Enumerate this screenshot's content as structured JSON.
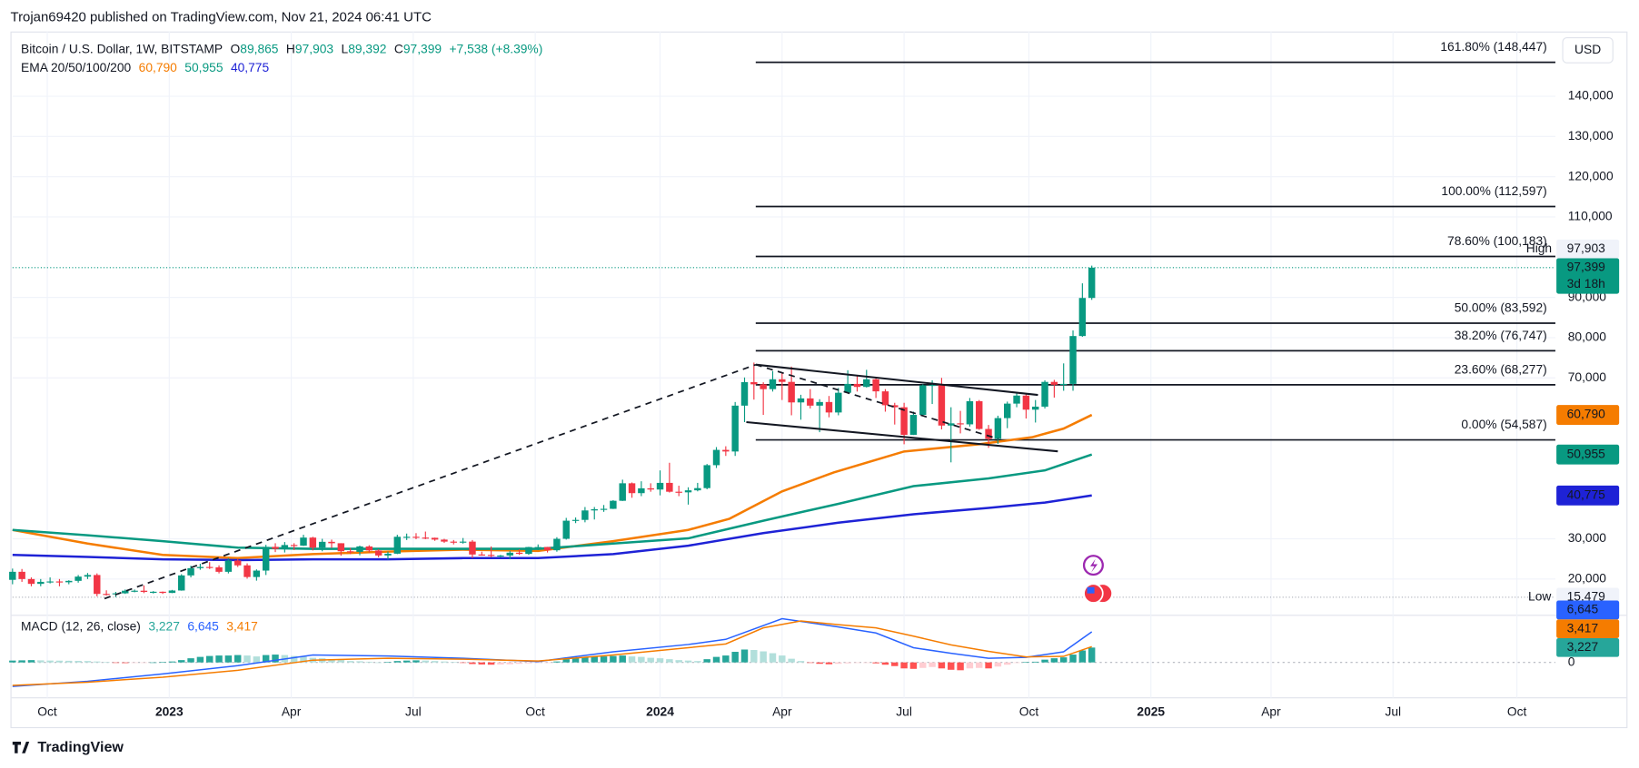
{
  "header": {
    "publisher": "Trojan69420 published on TradingView.com, Nov 21, 2024 06:41 UTC"
  },
  "footer": {
    "brand": "TradingView"
  },
  "chart_data": [
    {
      "type": "candlestick",
      "title": "Bitcoin / U.S. Dollar, 1W, BITSTAMP",
      "currency": "USD",
      "ohlc": [
        {
          "key": "O",
          "value": 89865,
          "label": "89,865"
        },
        {
          "key": "H",
          "value": 97903,
          "label": "97,903"
        },
        {
          "key": "L",
          "value": 89392,
          "label": "89,392"
        },
        {
          "key": "C",
          "value": 97399,
          "label": "97,399"
        }
      ],
      "change": "+7,538 (+8.39%)",
      "countdown": "3d 18h",
      "high_tag": "High",
      "low_marker": {
        "label": "Low",
        "price": {
          "value": 15479,
          "label": "15,479"
        }
      },
      "up_color": "#089981",
      "down_color": "#f23645",
      "grid": true,
      "xlim": [
        0,
        164.4
      ],
      "xticks": [
        {
          "value": 3.7,
          "label": "Oct"
        },
        {
          "value": 16.7,
          "label": "2023"
        },
        {
          "value": 29.7,
          "label": "Apr"
        },
        {
          "value": 42.7,
          "label": "Jul"
        },
        {
          "value": 55.7,
          "label": "Oct"
        },
        {
          "value": 69,
          "label": "2024"
        },
        {
          "value": 82,
          "label": "Apr"
        },
        {
          "value": 95,
          "label": "Jul"
        },
        {
          "value": 108.3,
          "label": "Oct"
        },
        {
          "value": 121.3,
          "label": "2025"
        },
        {
          "value": 134.1,
          "label": "Apr"
        },
        {
          "value": 147.1,
          "label": "Jul"
        },
        {
          "value": 160.3,
          "label": "Oct"
        }
      ],
      "ylim": [
        11235,
        156095
      ],
      "yticks": [
        {
          "value": 140000,
          "label": "140,000"
        },
        {
          "value": 130000,
          "label": "130,000"
        },
        {
          "value": 120000,
          "label": "120,000"
        },
        {
          "value": 110000,
          "label": "110,000"
        },
        {
          "value": 90000,
          "label": "90,000"
        },
        {
          "value": 80000,
          "label": "80,000"
        },
        {
          "value": 70000,
          "label": "70,000"
        },
        {
          "value": 30000,
          "label": "30,000"
        },
        {
          "value": 20000,
          "label": "20,000"
        }
      ],
      "open": [
        19800,
        21800,
        20000,
        18800,
        19300,
        19400,
        19200,
        19550,
        20600,
        21000,
        16300,
        16280,
        16450,
        17100,
        17100,
        16800,
        16840,
        16550,
        17150,
        20900,
        22700,
        23000,
        22900,
        21800,
        24600,
        23400,
        20500,
        22100,
        28000,
        27500,
        28450,
        28300,
        30300,
        27800,
        29250,
        28900,
        26900,
        26750,
        28100,
        27100,
        25850,
        26300,
        30500,
        30500,
        30300,
        30250,
        29800,
        29300,
        29050,
        29300,
        26100,
        26000,
        25850,
        25850,
        26550,
        26250,
        27950,
        27950,
        27150,
        30000,
        34500,
        34700,
        37050,
        37350,
        37450,
        39450,
        43800,
        41350,
        42550,
        42250,
        43900,
        41700,
        41550,
        42050,
        42600,
        48300,
        52100,
        51700,
        63100,
        68950,
        68400,
        67200,
        69650,
        69000,
        63900,
        64900,
        63100,
        64000,
        61400,
        66300,
        68500,
        67750,
        69650,
        66650,
        63200,
        62700,
        55850,
        60800,
        68150,
        68250,
        58150,
        58700,
        58450,
        64200,
        57300,
        54850,
        60000,
        63600,
        65600,
        62100,
        62850,
        69000,
        68300,
        68500,
        80400,
        89865
      ],
      "high": [
        22600,
        22500,
        20400,
        20000,
        20400,
        20000,
        19700,
        21000,
        21500,
        21400,
        17200,
        16800,
        17400,
        17400,
        18400,
        17000,
        16900,
        17300,
        21200,
        23300,
        23800,
        24200,
        23400,
        25200,
        25000,
        23900,
        22400,
        28500,
        28900,
        29200,
        28900,
        31000,
        30500,
        30000,
        29800,
        28900,
        27700,
        28300,
        28400,
        27400,
        26800,
        31000,
        31300,
        31400,
        31800,
        30300,
        30000,
        29700,
        30200,
        29700,
        26800,
        28100,
        26000,
        27000,
        27400,
        28000,
        28600,
        28000,
        30400,
        35200,
        35300,
        37900,
        37900,
        38400,
        39600,
        44700,
        44000,
        44300,
        43800,
        47000,
        48900,
        43200,
        42800,
        43900,
        48600,
        52800,
        53000,
        64000,
        70100,
        73800,
        68900,
        71700,
        71300,
        72800,
        65800,
        67200,
        64700,
        65500,
        67500,
        71900,
        70500,
        72000,
        70000,
        67200,
        63800,
        63800,
        61600,
        68400,
        69400,
        70000,
        62700,
        61800,
        65000,
        64500,
        58300,
        60600,
        64100,
        66500,
        66000,
        64500,
        69400,
        69500,
        73600,
        81800,
        93500,
        97903
      ],
      "low": [
        18700,
        19300,
        18200,
        18200,
        18900,
        18200,
        18700,
        19100,
        20000,
        15700,
        15900,
        15479,
        16300,
        16700,
        16500,
        16400,
        16300,
        16500,
        17100,
        20400,
        22300,
        22500,
        21400,
        21400,
        23000,
        20100,
        19600,
        21000,
        26700,
        26600,
        27200,
        28200,
        27100,
        26900,
        27700,
        25800,
        26200,
        25900,
        26600,
        25400,
        24800,
        26200,
        29700,
        29900,
        29900,
        29500,
        29000,
        28600,
        28800,
        25200,
        25800,
        25400,
        25400,
        24900,
        26000,
        26000,
        27200,
        26600,
        26800,
        29800,
        33900,
        34100,
        34800,
        36700,
        37400,
        39400,
        40200,
        40600,
        41700,
        40800,
        41500,
        40600,
        38500,
        41800,
        42300,
        47600,
        50600,
        50600,
        59000,
        64600,
        60800,
        66600,
        64500,
        60700,
        59600,
        62400,
        56500,
        60200,
        60700,
        66100,
        66600,
        67600,
        65000,
        61600,
        58400,
        53500,
        55800,
        60700,
        63500,
        57200,
        49000,
        56200,
        57900,
        57100,
        52600,
        53600,
        57500,
        62700,
        59900,
        58900,
        62400,
        65100,
        66800,
        66800,
        80200,
        89392
      ],
      "close": [
        21800,
        20000,
        18800,
        19300,
        19400,
        19200,
        19550,
        20600,
        21000,
        16300,
        16280,
        16450,
        17100,
        17100,
        16800,
        16840,
        16550,
        17150,
        20900,
        22700,
        23000,
        22900,
        21800,
        24600,
        23400,
        20500,
        22100,
        28000,
        27500,
        28450,
        28300,
        30300,
        27800,
        29250,
        28900,
        26900,
        26750,
        28100,
        27100,
        25850,
        26300,
        30500,
        30500,
        30300,
        30250,
        29800,
        29300,
        29050,
        29300,
        26100,
        26000,
        25850,
        25850,
        26550,
        26250,
        27950,
        27950,
        27150,
        30000,
        34500,
        34700,
        37050,
        37350,
        37450,
        39450,
        43800,
        41350,
        42550,
        42250,
        43900,
        41700,
        41550,
        42050,
        42600,
        48300,
        52100,
        51700,
        63100,
        68950,
        68400,
        67200,
        69650,
        69000,
        63900,
        64900,
        63100,
        64000,
        61400,
        66300,
        68500,
        67750,
        69650,
        66650,
        63200,
        62700,
        55850,
        60800,
        68150,
        68250,
        58150,
        58700,
        58450,
        64200,
        57300,
        54850,
        60000,
        63600,
        65600,
        62100,
        62850,
        69000,
        68300,
        68500,
        80400,
        89861,
        97399
      ],
      "indicator": {
        "label": "EMA 20/50/100/200",
        "series": [
          {
            "color": "#f57c00",
            "x": [
              0,
              8,
              16,
              24,
              32,
              40,
              48,
              56,
              64,
              72,
              76.4,
              82,
              87.5,
              95,
              103,
              108.7,
              112,
              115
            ],
            "values": [
              32200,
              28800,
              26000,
              25200,
              26200,
              26800,
              27300,
              27000,
              29400,
              32200,
              35000,
              41800,
              46500,
              51700,
              53500,
              55300,
              57400,
              60790
            ],
            "last_label": "60,790"
          },
          {
            "color": "#089981",
            "x": [
              0,
              8,
              16,
              24,
              32,
              40,
              48,
              56,
              64,
              72,
              80,
              88,
              96,
              104,
              110,
              115
            ],
            "values": [
              32200,
              30900,
              29400,
              27800,
              27500,
              27500,
              27500,
              27500,
              28800,
              30100,
              34500,
              38700,
              43100,
              45000,
              47000,
              50955
            ],
            "last_label": "50,955"
          },
          {
            "color": "#1e22d6",
            "x": [
              0,
              8,
              16,
              24,
              32,
              40,
              48,
              56,
              64,
              72,
              80,
              88,
              96,
              104,
              110,
              115
            ],
            "values": [
              26000,
              25500,
              24900,
              24700,
              24900,
              24900,
              25200,
              25200,
              26200,
              28300,
              31400,
              34000,
              36100,
              37700,
              39000,
              40775
            ],
            "last_label": "40,775"
          }
        ]
      },
      "fib_levels": [
        {
          "value": 148447,
          "label": "161.80% (148,447)"
        },
        {
          "value": 112597,
          "label": "100.00% (112,597)"
        },
        {
          "value": 100183,
          "label": "78.60% (100,183)"
        },
        {
          "value": 83592,
          "label": "50.00% (83,592)"
        },
        {
          "value": 76747,
          "label": "38.20% (76,747)"
        },
        {
          "value": 68277,
          "label": "23.60% (68,277)"
        },
        {
          "value": 54587,
          "label": "0.00% (54,587)"
        }
      ]
    },
    {
      "type": "macd",
      "title": "MACD (12, 26, close)",
      "ylim": [
        -7700,
        10000
      ],
      "yticks": [
        0
      ],
      "histogram": {
        "colors": [
          "#26a69a",
          "#b2dfdb",
          "#ff5252",
          "#ffcdd2"
        ],
        "last_label": "3,227",
        "values": [
          400,
          450,
          500,
          450,
          400,
          380,
          350,
          330,
          300,
          200,
          50,
          -100,
          -150,
          -100,
          -50,
          0,
          100,
          200,
          500,
          900,
          1200,
          1400,
          1500,
          1500,
          1600,
          1500,
          1300,
          1600,
          1700,
          1600,
          1400,
          1300,
          1000,
          900,
          700,
          500,
          300,
          250,
          150,
          0,
          100,
          300,
          400,
          450,
          400,
          300,
          200,
          100,
          -100,
          -350,
          -450,
          -500,
          -450,
          -400,
          -300,
          -200,
          -100,
          -50,
          200,
          700,
          1000,
          1200,
          1300,
          1300,
          1400,
          1500,
          1300,
          1200,
          1000,
          900,
          700,
          500,
          400,
          300,
          700,
          1200,
          1500,
          2300,
          2800,
          2700,
          2400,
          2000,
          1500,
          800,
          300,
          -100,
          -300,
          -400,
          -300,
          -200,
          -100,
          -50,
          -200,
          -500,
          -800,
          -1300,
          -1400,
          -1200,
          -1000,
          -1300,
          -1600,
          -1700,
          -1300,
          -1200,
          -1300,
          -900,
          -500,
          -100,
          100,
          150,
          600,
          900,
          1100,
          1700,
          2600,
          3227
        ]
      },
      "series": [
        {
          "color": "#2962ff",
          "x": [
            0,
            8,
            16,
            24,
            32,
            40,
            48,
            56,
            64,
            72,
            76,
            82,
            84,
            88,
            92,
            96,
            100,
            104,
            108,
            112,
            115
          ],
          "values": [
            -5200,
            -4100,
            -2500,
            -700,
            1600,
            1400,
            900,
            200,
            2300,
            3900,
            5000,
            9500,
            8900,
            7700,
            6400,
            3200,
            2000,
            900,
            1100,
            2300,
            6645
          ],
          "last_label": "6,645"
        },
        {
          "color": "#f57c00",
          "x": [
            0,
            8,
            16,
            24,
            32,
            40,
            48,
            56,
            64,
            72,
            76,
            80,
            84,
            88,
            92,
            96,
            100,
            104,
            108,
            112,
            115
          ],
          "values": [
            -5000,
            -4300,
            -3200,
            -1700,
            500,
            900,
            700,
            300,
            1600,
            3200,
            4000,
            7500,
            9000,
            8200,
            7500,
            5700,
            3800,
            2400,
            1200,
            1300,
            3417
          ],
          "last_label": "3,417"
        }
      ]
    }
  ]
}
